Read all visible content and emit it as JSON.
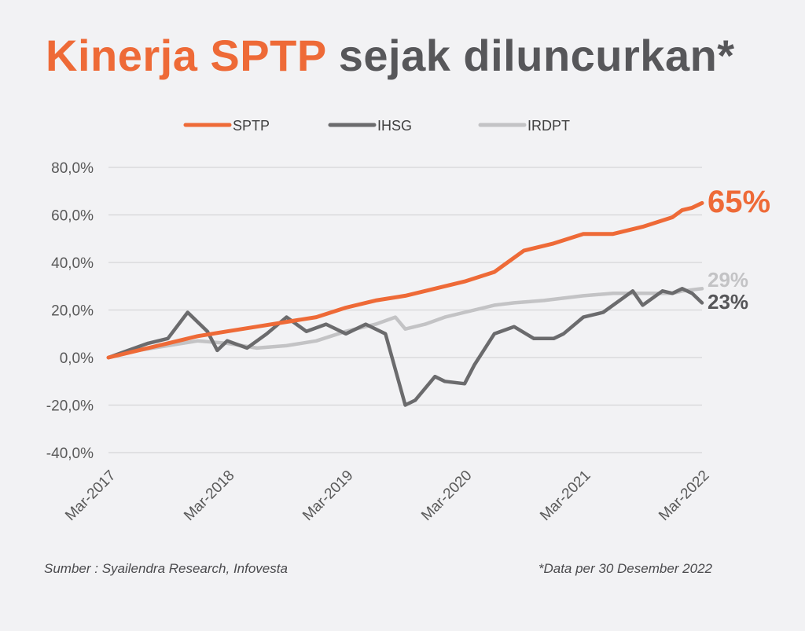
{
  "title": {
    "accent": "Kinerja SPTP",
    "rest": "sejak diluncurkan*"
  },
  "footer": {
    "source": "Sumber : Syailendra Research, Infovesta",
    "note": "*Data per 30 Desember 2022"
  },
  "colors": {
    "SPTP": "#ee6a37",
    "IHSG": "#6b6b6d",
    "IRDPT": "#c3c3c5",
    "grid": "#d6d6d8",
    "axis": "#595959"
  },
  "chart_data": {
    "type": "line",
    "x_ticks": [
      "Mar-2017",
      "Mar-2018",
      "Mar-2019",
      "Mar-2020",
      "Mar-2021",
      "Mar-2022"
    ],
    "y_ticks": [
      "80,0%",
      "60,0%",
      "40,0%",
      "20,0%",
      "0,0%",
      "-20,0%",
      "-40,0%"
    ],
    "ylim": [
      -40,
      80
    ],
    "xlim": [
      "2017-03",
      "2022-03"
    ],
    "legend_position": "top",
    "end_labels": {
      "SPTP": "65%",
      "IRDPT": "29%",
      "IHSG": "23%"
    },
    "series": [
      {
        "name": "SPTP",
        "points": [
          [
            "2017-03",
            0
          ],
          [
            "2017-06",
            3
          ],
          [
            "2017-09",
            6
          ],
          [
            "2017-12",
            9
          ],
          [
            "2018-03",
            11
          ],
          [
            "2018-06",
            13
          ],
          [
            "2018-09",
            15
          ],
          [
            "2018-12",
            17
          ],
          [
            "2019-03",
            21
          ],
          [
            "2019-06",
            24
          ],
          [
            "2019-09",
            26
          ],
          [
            "2019-12",
            29
          ],
          [
            "2020-03",
            32
          ],
          [
            "2020-06",
            36
          ],
          [
            "2020-09",
            45
          ],
          [
            "2020-12",
            48
          ],
          [
            "2021-03",
            52
          ],
          [
            "2021-06",
            52
          ],
          [
            "2021-09",
            55
          ],
          [
            "2021-12",
            59
          ],
          [
            "2022-01",
            62
          ],
          [
            "2022-02",
            63
          ],
          [
            "2022-03",
            65
          ]
        ]
      },
      {
        "name": "IHSG",
        "points": [
          [
            "2017-03",
            0
          ],
          [
            "2017-05",
            3
          ],
          [
            "2017-07",
            6
          ],
          [
            "2017-09",
            8
          ],
          [
            "2017-11",
            19
          ],
          [
            "2018-01",
            11
          ],
          [
            "2018-02",
            3
          ],
          [
            "2018-03",
            7
          ],
          [
            "2018-05",
            4
          ],
          [
            "2018-07",
            10
          ],
          [
            "2018-09",
            17
          ],
          [
            "2018-11",
            11
          ],
          [
            "2019-01",
            14
          ],
          [
            "2019-03",
            10
          ],
          [
            "2019-05",
            14
          ],
          [
            "2019-07",
            10
          ],
          [
            "2019-09",
            -20
          ],
          [
            "2019-10",
            -18
          ],
          [
            "2019-12",
            -8
          ],
          [
            "2020-01",
            -10
          ],
          [
            "2020-03",
            -11
          ],
          [
            "2020-04",
            -3
          ],
          [
            "2020-06",
            10
          ],
          [
            "2020-08",
            13
          ],
          [
            "2020-10",
            8
          ],
          [
            "2020-12",
            8
          ],
          [
            "2021-01",
            10
          ],
          [
            "2021-03",
            17
          ],
          [
            "2021-05",
            19
          ],
          [
            "2021-07",
            25
          ],
          [
            "2021-08",
            28
          ],
          [
            "2021-09",
            22
          ],
          [
            "2021-11",
            28
          ],
          [
            "2021-12",
            27
          ],
          [
            "2022-01",
            29
          ],
          [
            "2022-02",
            27
          ],
          [
            "2022-03",
            23
          ]
        ]
      },
      {
        "name": "IRDPT",
        "points": [
          [
            "2017-03",
            0
          ],
          [
            "2017-06",
            3
          ],
          [
            "2017-09",
            5
          ],
          [
            "2017-12",
            7
          ],
          [
            "2018-03",
            6
          ],
          [
            "2018-06",
            4
          ],
          [
            "2018-09",
            5
          ],
          [
            "2018-12",
            7
          ],
          [
            "2019-03",
            11
          ],
          [
            "2019-06",
            14
          ],
          [
            "2019-08",
            17
          ],
          [
            "2019-09",
            12
          ],
          [
            "2019-11",
            14
          ],
          [
            "2020-01",
            17
          ],
          [
            "2020-03",
            19
          ],
          [
            "2020-06",
            22
          ],
          [
            "2020-08",
            23
          ],
          [
            "2020-11",
            24
          ],
          [
            "2021-01",
            25
          ],
          [
            "2021-03",
            26
          ],
          [
            "2021-06",
            27
          ],
          [
            "2021-09",
            27
          ],
          [
            "2021-12",
            27
          ],
          [
            "2022-01",
            28
          ],
          [
            "2022-03",
            29
          ]
        ]
      }
    ]
  }
}
